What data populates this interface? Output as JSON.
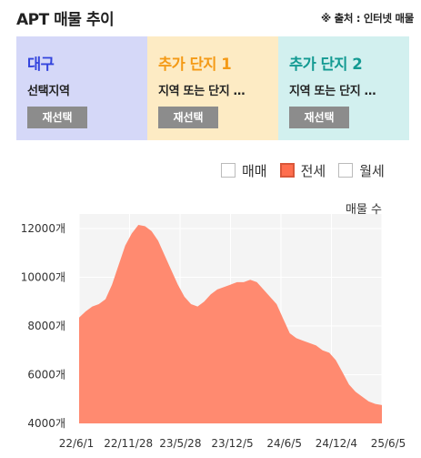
{
  "header": {
    "title": "APT 매물 추이",
    "source": "※ 출처 : 인터넷 매물"
  },
  "cards": [
    {
      "name": "대구",
      "sub": "선택지역",
      "button": "재선택",
      "bg": "#d5d8f8",
      "color": "#3344dd"
    },
    {
      "name": "추가 단지 1",
      "sub": "지역 또는 단지 …",
      "button": "재선택",
      "bg": "#fdebc4",
      "color": "#f49a16"
    },
    {
      "name": "추가 단지 2",
      "sub": "지역 또는 단지 …",
      "button": "재선택",
      "bg": "#d2f0ef",
      "color": "#139a92"
    }
  ],
  "legend": [
    {
      "label": "매매",
      "checked": false
    },
    {
      "label": "전세",
      "checked": true
    },
    {
      "label": "월세",
      "checked": false
    }
  ],
  "colors": {
    "area": "#ff8a70"
  },
  "chart_data": {
    "type": "area",
    "ylabel": "매물 수",
    "ylim": [
      4000,
      12600
    ],
    "y_ticks": [
      {
        "value": 4000,
        "label": "4000개"
      },
      {
        "value": 6000,
        "label": "6000개"
      },
      {
        "value": 8000,
        "label": "8000개"
      },
      {
        "value": 10000,
        "label": "10000개"
      },
      {
        "value": 12000,
        "label": "12000개"
      }
    ],
    "x_ticks": [
      "22/6/1",
      "22/11/28",
      "23/5/28",
      "23/12/5",
      "24/6/5",
      "24/12/4",
      "25/6/5"
    ],
    "grid": true,
    "series": [
      {
        "values": [
          8350,
          8600,
          8800,
          8900,
          9100,
          9700,
          10500,
          11300,
          11800,
          12150,
          12100,
          11900,
          11500,
          10900,
          10300,
          9700,
          9200,
          8900,
          8800,
          9000,
          9300,
          9500,
          9600,
          9700,
          9800,
          9800,
          9900,
          9800,
          9500,
          9200,
          8900,
          8300,
          7700,
          7500,
          7400,
          7300,
          7200,
          7000,
          6900,
          6600,
          6100,
          5600,
          5300,
          5100,
          4900,
          4800,
          4750
        ]
      }
    ]
  }
}
